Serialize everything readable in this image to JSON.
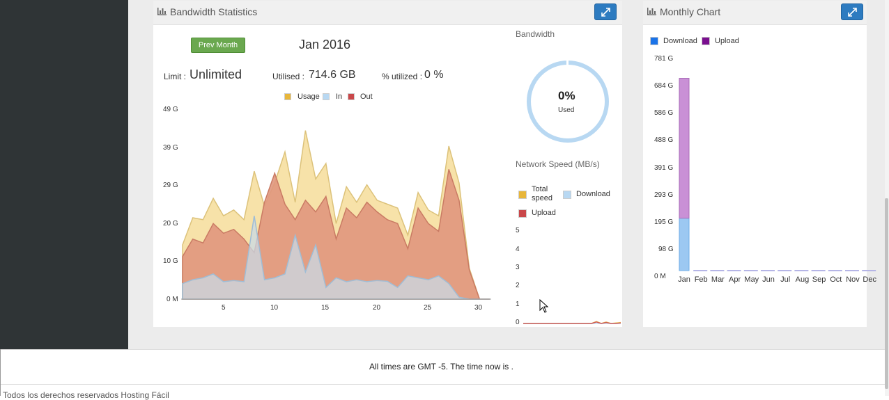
{
  "bandwidth_widget": {
    "title": "Bandwidth Statistics",
    "prev_button": "Prev Month",
    "month": "Jan 2016",
    "limit_label": "Limit :",
    "limit_value": "Unlimited",
    "utilised_label": "Utilised :",
    "utilised_value": "714.6 GB",
    "percent_label": "% utilized :",
    "percent_value": "0 %",
    "legend": [
      "Usage",
      "In",
      "Out"
    ],
    "y_ticks": [
      "49 G",
      "39 G",
      "29 G",
      "20 G",
      "10 G",
      "0 M"
    ],
    "x_ticks": [
      "5",
      "10",
      "15",
      "20",
      "25",
      "30"
    ]
  },
  "gauge": {
    "title": "Bandwidth",
    "percent": "0%",
    "caption": "Used",
    "fraction_used": 0
  },
  "network_speed": {
    "title": "Network Speed (MB/s)",
    "legend_total": "Total speed",
    "legend_download": "Download",
    "legend_upload": "Upload",
    "y_ticks": [
      "5",
      "4",
      "3",
      "2",
      "1",
      "0"
    ]
  },
  "monthly_widget": {
    "title": "Monthly Chart",
    "legend": [
      "Download",
      "Upload"
    ],
    "y_ticks": [
      "781 G",
      "684 G",
      "586 G",
      "488 G",
      "391 G",
      "293 G",
      "195 G",
      "98 G",
      "0 M"
    ]
  },
  "footer": {
    "time_text": "All times are GMT -5. The time now is .",
    "copyright": "Todos los derechos reservados Hosting Fácil"
  },
  "colors": {
    "usage": "#e8b63a",
    "in": "#b8d8f2",
    "out": "#c9474a",
    "download": "#1a73e8",
    "upload": "#7a0f8f",
    "button_blue": "#2d7bc0",
    "button_green": "#6aa84f"
  },
  "chart_data": [
    {
      "type": "area",
      "title": "",
      "x": [
        1,
        2,
        3,
        4,
        5,
        6,
        7,
        8,
        9,
        10,
        11,
        12,
        13,
        14,
        15,
        16,
        17,
        18,
        19,
        20,
        21,
        22,
        23,
        24,
        25,
        26,
        27,
        28,
        29,
        30,
        31
      ],
      "series": [
        {
          "name": "Usage",
          "values": [
            14,
            21,
            20.5,
            26,
            21.5,
            23,
            20.5,
            33,
            24,
            30,
            38,
            25,
            43.5,
            31,
            35,
            19.5,
            29,
            25,
            29.5,
            25.5,
            24.5,
            23.5,
            16.5,
            27.5,
            23,
            21.5,
            39.5,
            30,
            8,
            0,
            0
          ]
        },
        {
          "name": "In",
          "values": [
            4,
            5,
            5.5,
            6.5,
            4.5,
            4.8,
            4.5,
            21.5,
            5,
            5.5,
            6.5,
            16.5,
            7,
            14,
            3,
            5.5,
            4.5,
            5,
            4.5,
            4.8,
            4.6,
            3,
            6,
            5.5,
            5,
            6,
            4,
            0.5,
            0,
            0,
            0
          ]
        },
        {
          "name": "Out",
          "values": [
            11,
            15.5,
            14.5,
            19.5,
            17,
            18,
            15.5,
            12,
            25,
            32.5,
            24.5,
            20.5,
            25.5,
            22.5,
            26.5,
            15.5,
            23.5,
            21,
            25,
            22.5,
            20.5,
            19.5,
            13,
            23.5,
            19.5,
            17.5,
            33.5,
            25.5,
            7.5,
            0,
            0
          ]
        }
      ],
      "xlim": [
        1,
        31
      ],
      "ylim": [
        0,
        49
      ],
      "ylabel": "",
      "xlabel": "",
      "legend": "top-center"
    },
    {
      "type": "line",
      "title": "Network Speed (MB/s)",
      "x": [
        0,
        1,
        2,
        3,
        4,
        5,
        6,
        7,
        8,
        9,
        10,
        11,
        12,
        13,
        14,
        15,
        16,
        17,
        18,
        19,
        20
      ],
      "series": [
        {
          "name": "Total speed",
          "values": [
            0,
            0,
            0,
            0,
            0,
            0,
            0,
            0,
            0,
            0,
            0,
            0,
            0,
            0,
            0,
            0.2,
            0,
            0.15,
            0,
            0.05,
            0.1
          ]
        },
        {
          "name": "Download",
          "values": [
            0,
            0,
            0,
            0,
            0,
            0,
            0,
            0,
            0,
            0,
            0,
            0,
            0,
            0,
            0,
            0,
            0,
            0,
            0,
            0,
            0
          ]
        },
        {
          "name": "Upload",
          "values": [
            0,
            0,
            0,
            0,
            0,
            0,
            0,
            0,
            0,
            0,
            0,
            0,
            0,
            0,
            0,
            0.15,
            0,
            0.1,
            0,
            0,
            0.05
          ]
        }
      ],
      "ylim": [
        0,
        5
      ]
    },
    {
      "type": "bar",
      "title": "Monthly Chart",
      "categories": [
        "Jan",
        "Feb",
        "Mar",
        "Apr",
        "May",
        "Jun",
        "Jul",
        "Aug",
        "Sep",
        "Oct",
        "Nov",
        "Dec"
      ],
      "series": [
        {
          "name": "Download",
          "values": [
            195,
            0,
            0,
            0,
            0,
            0,
            0,
            0,
            0,
            0,
            0,
            0
          ]
        },
        {
          "name": "Upload",
          "values": [
            520,
            0,
            0,
            0,
            0,
            0,
            0,
            0,
            0,
            0,
            0,
            0
          ]
        }
      ],
      "stacked": true,
      "ylim": [
        0,
        781
      ],
      "legend": "top-left"
    }
  ]
}
